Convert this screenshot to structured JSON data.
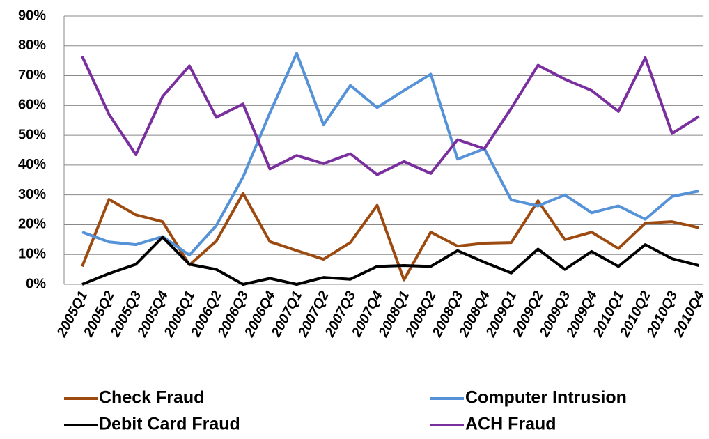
{
  "chart_data": {
    "type": "line",
    "categories": [
      "2005Q1",
      "2005Q2",
      "2005Q3",
      "2005Q4",
      "2006Q1",
      "2006Q2",
      "2006Q3",
      "2006Q4",
      "2007Q1",
      "2007Q2",
      "2007Q3",
      "2007Q4",
      "2008Q1",
      "2008Q2",
      "2008Q3",
      "2008Q4",
      "2009Q1",
      "2009Q2",
      "2009Q3",
      "2009Q4",
      "2010Q1",
      "2010Q2",
      "2010Q3",
      "2010Q4"
    ],
    "series": [
      {
        "name": "Check Fraud",
        "color": "#9c4a10",
        "values": [
          6,
          28.5,
          23.3,
          21,
          6.5,
          14.5,
          30.5,
          14.3,
          11.3,
          8.4,
          14,
          26.5,
          1.5,
          17.5,
          12.8,
          13.8,
          14,
          28,
          15,
          17.5,
          12,
          20.5,
          21,
          19
        ]
      },
      {
        "name": "Computer Intrusion",
        "color": "#5592d8",
        "values": [
          17.5,
          14.2,
          13.3,
          16,
          9.8,
          19.7,
          36,
          57.5,
          77.5,
          53.5,
          66.7,
          59.3,
          65,
          70.5,
          42,
          45.5,
          28.3,
          26.3,
          30,
          24,
          26.3,
          21.8,
          29.5,
          31.3
        ]
      },
      {
        "name": "Debit Card Fraud",
        "color": "#000000",
        "values": [
          0,
          3.6,
          6.7,
          15.8,
          6.7,
          5,
          0,
          2,
          0,
          2.3,
          1.7,
          6,
          6.3,
          6,
          11.3,
          7.4,
          3.8,
          11.8,
          5,
          11,
          6,
          13.3,
          8.6,
          6.3
        ]
      },
      {
        "name": "ACH Fraud",
        "color": "#7a2f9e",
        "values": [
          76.5,
          57,
          43.5,
          63,
          73.3,
          56,
          60.5,
          38.7,
          43.2,
          40.5,
          43.8,
          36.8,
          41.2,
          37.2,
          48.5,
          45.5,
          59,
          73.5,
          68.8,
          65,
          58,
          76,
          50.6,
          56.3
        ]
      }
    ],
    "ylim": [
      0,
      90
    ],
    "yticks": [
      {
        "value": 0,
        "label": "0%"
      },
      {
        "value": 10,
        "label": "10%"
      },
      {
        "value": 20,
        "label": "20%"
      },
      {
        "value": 30,
        "label": "30%"
      },
      {
        "value": 40,
        "label": "40%"
      },
      {
        "value": 50,
        "label": "50%"
      },
      {
        "value": 60,
        "label": "60%"
      },
      {
        "value": 70,
        "label": "70%"
      },
      {
        "value": 80,
        "label": "80%"
      },
      {
        "value": 90,
        "label": "90%"
      }
    ],
    "grid": true
  }
}
